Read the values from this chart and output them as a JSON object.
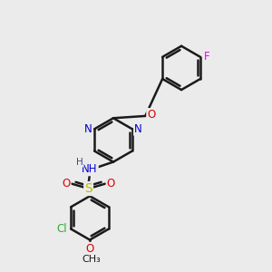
{
  "bg_color": "#ebebeb",
  "bond_color": "#1a1a1a",
  "bond_width": 1.8,
  "figsize": [
    3.0,
    3.0
  ],
  "dpi": 100,
  "atoms": {
    "F": {
      "color": "#ee00ee"
    },
    "O": {
      "color": "#dd0000"
    },
    "N": {
      "color": "#0000cc"
    },
    "S": {
      "color": "#bbbb00"
    },
    "Cl": {
      "color": "#33aa33"
    },
    "H": {
      "color": "#444488"
    }
  },
  "font_size": 8.5
}
